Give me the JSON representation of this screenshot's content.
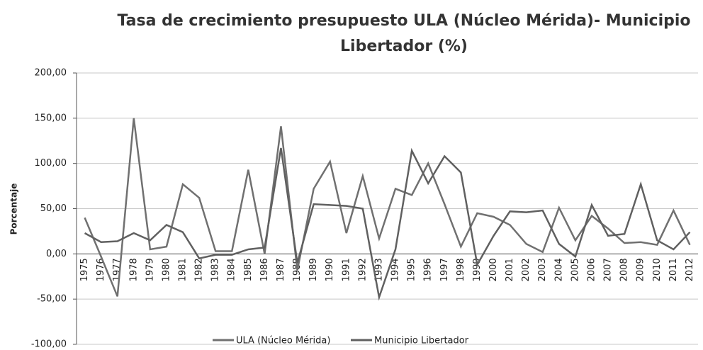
{
  "chart_data": {
    "type": "line",
    "title": [
      "Tasa de crecimiento presupuesto ULA (Núcleo Mérida)- Municipio",
      "Libertador (%)"
    ],
    "y_label": "Porcentaje",
    "categories": [
      "1975",
      "1976",
      "1977",
      "1978",
      "1979",
      "1980",
      "1981",
      "1982",
      "1983",
      "1984",
      "1985",
      "1986",
      "1987",
      "1988",
      "1989",
      "1990",
      "1991",
      "1992",
      "1993",
      "1994",
      "1995",
      "1996",
      "1997",
      "1998",
      "1999",
      "2000",
      "2001",
      "2002",
      "2003",
      "2004",
      "2005",
      "2006",
      "2007",
      "2008",
      "2009",
      "2010",
      "2011",
      "2012"
    ],
    "series": [
      {
        "name": "ULA (Núcleo Mérida)",
        "color": "#707070",
        "values": [
          40,
          -3,
          -47,
          150,
          5,
          8,
          77,
          62,
          3,
          3,
          93,
          0,
          141,
          -18,
          72,
          102,
          23,
          86,
          17,
          72,
          65,
          100,
          55,
          8,
          45,
          41,
          32,
          11,
          2,
          51,
          15,
          42,
          28,
          12,
          13,
          10,
          48,
          10
        ]
      },
      {
        "name": "Municipio Libertador",
        "color": "#606060",
        "values": [
          23,
          13,
          14,
          23,
          15,
          32,
          24,
          -5,
          -1,
          -1,
          5,
          7,
          117,
          -10,
          55,
          54,
          53,
          50,
          -48,
          5,
          114,
          78,
          108,
          90,
          -12,
          20,
          47,
          46,
          48,
          11,
          -3,
          54,
          20,
          22,
          77,
          15,
          5,
          24
        ]
      }
    ],
    "ylim": [
      -100,
      200
    ],
    "yticks": [
      {
        "value": -100,
        "label": "-100,00"
      },
      {
        "value": -50,
        "label": "-50,00"
      },
      {
        "value": 0,
        "label": "0,00"
      },
      {
        "value": 50,
        "label": "50,00"
      },
      {
        "value": 100,
        "label": "100,00"
      },
      {
        "value": 150,
        "label": "150,00"
      },
      {
        "value": 200,
        "label": "200,00"
      }
    ],
    "grid": true,
    "legend": "bottom"
  }
}
